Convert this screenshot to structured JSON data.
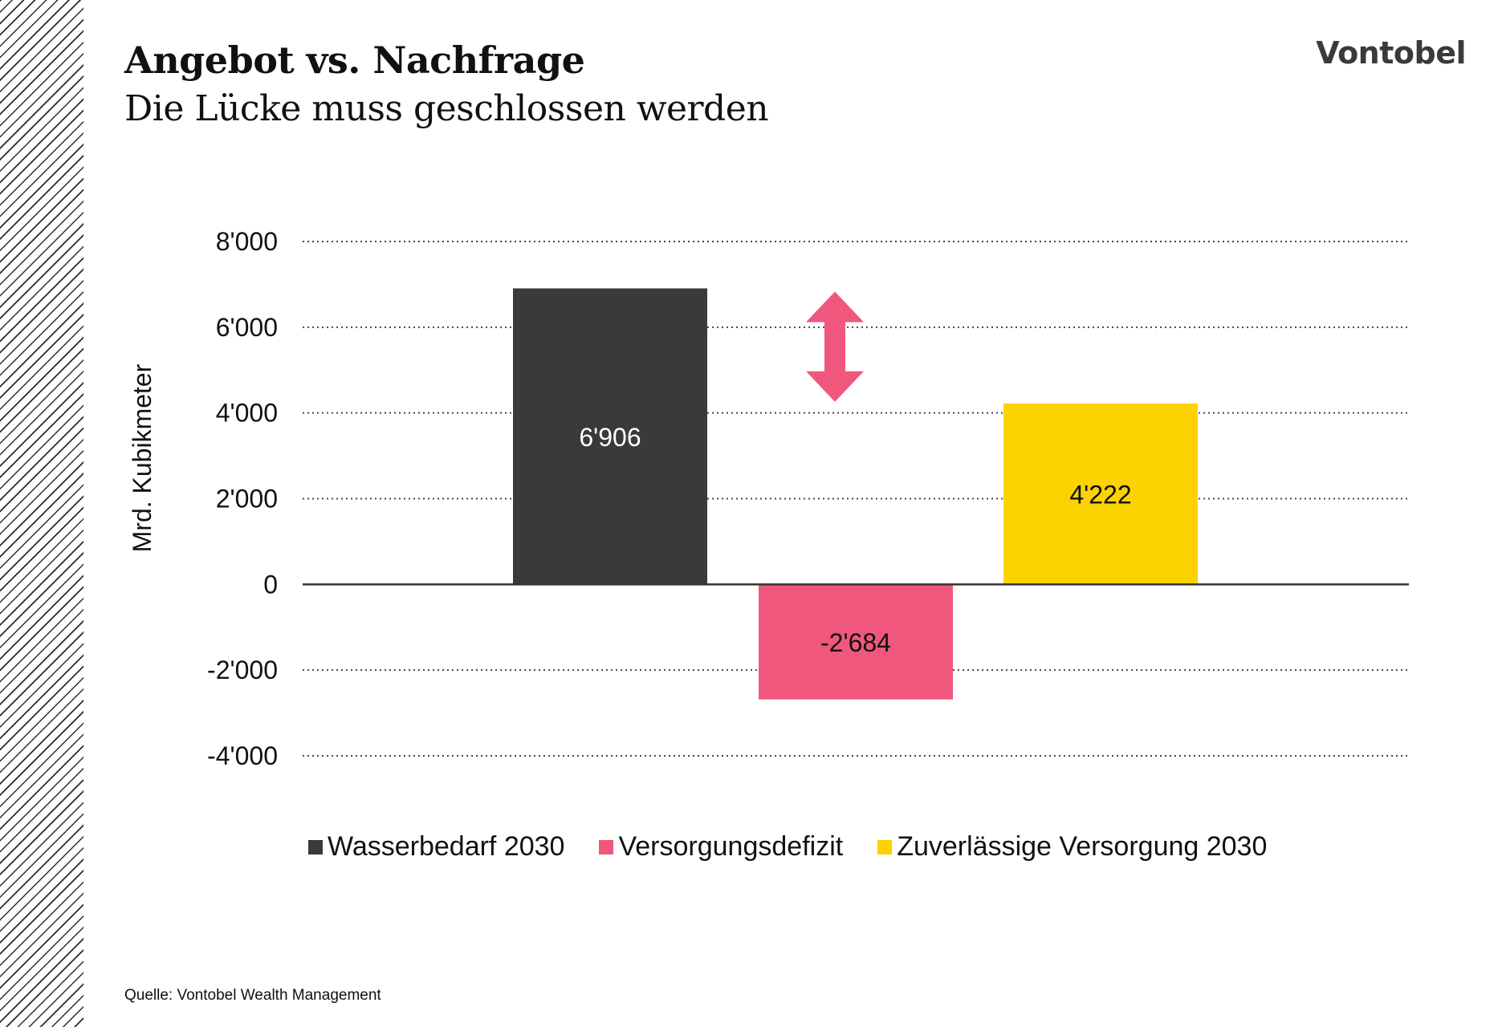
{
  "header": {
    "title": "Angebot vs. Nachfrage",
    "subtitle": "Die Lücke muss geschlossen werden",
    "brand": "Vontobel"
  },
  "footer": {
    "source": "Quelle: Vontobel Wealth Management"
  },
  "chart_data": {
    "type": "bar",
    "title": "Angebot vs. Nachfrage",
    "subtitle": "Die Lücke muss geschlossen werden",
    "xlabel": "",
    "ylabel": "Mrd. Kubikmeter",
    "ylim": [
      -4000,
      8000
    ],
    "yticks": [
      8000,
      6000,
      4000,
      2000,
      0,
      -2000,
      -4000
    ],
    "ytick_labels": [
      "8'000",
      "6'000",
      "4'000",
      "2'000",
      "0",
      "-2'000",
      "-4'000"
    ],
    "grid": "horizontal dotted",
    "legend_position": "bottom",
    "series": [
      {
        "name": "Wasserbedarf 2030",
        "value": 6906,
        "label": "6'906",
        "color": "#3a3b38",
        "label_color": "#ffffff"
      },
      {
        "name": "Versorgungsdefizit",
        "value": -2684,
        "label": "-2'684",
        "color": "#f0577c",
        "label_color": "#111111"
      },
      {
        "name": "Zuverlässige Versorgung 2030",
        "value": 4222,
        "label": "4'222",
        "color": "#fcd200",
        "label_color": "#111111"
      }
    ],
    "annotation": {
      "type": "double-arrow",
      "from": 4222,
      "to": 6906,
      "color": "#f0577c"
    }
  }
}
